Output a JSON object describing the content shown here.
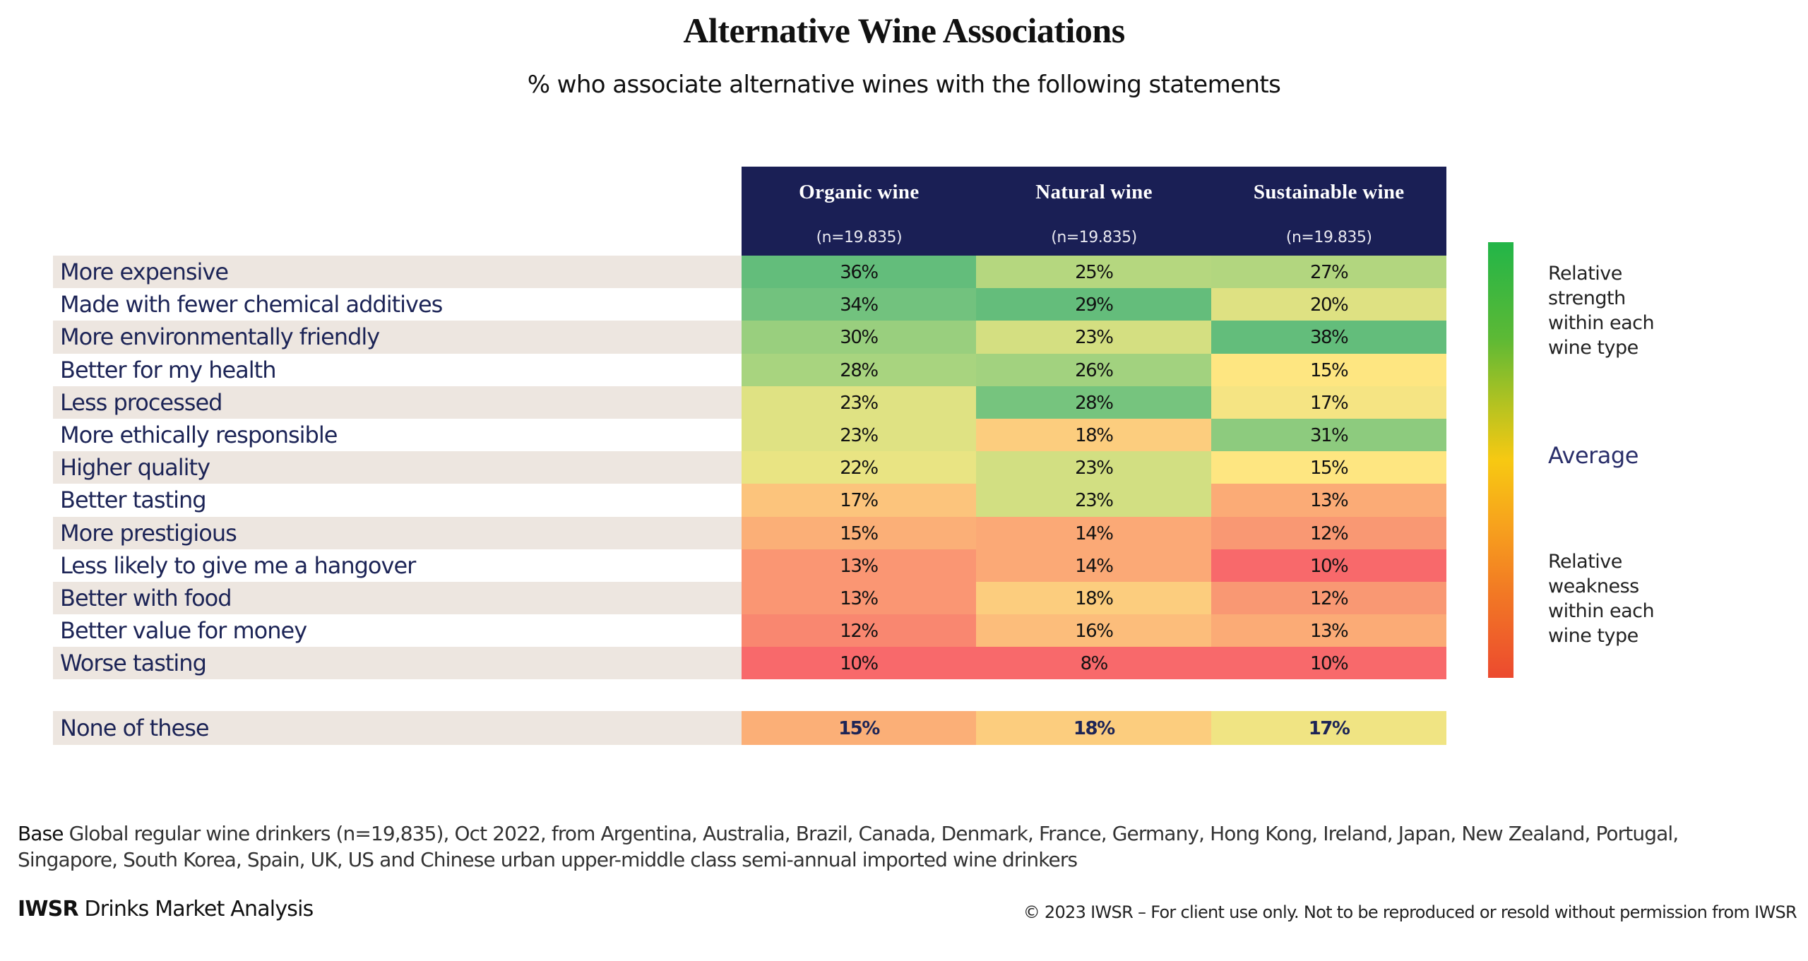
{
  "chart_data": {
    "type": "heatmap",
    "title": "Alternative Wine Associations",
    "subtitle": "% who associate alternative wines with the following statements",
    "columns": [
      {
        "name": "Organic wine",
        "n": "(n=19.835)"
      },
      {
        "name": "Natural wine",
        "n": "(n=19.835)"
      },
      {
        "name": "Sustainable wine",
        "n": "(n=19.835)"
      }
    ],
    "rows": [
      {
        "label": "More expensive",
        "values": [
          36,
          25,
          27
        ],
        "display": [
          "36%",
          "25%",
          "27%"
        ],
        "colors": [
          "#63bd7b",
          "#b5d77f",
          "#b2d67f"
        ]
      },
      {
        "label": "Made with fewer chemical additives",
        "values": [
          34,
          29,
          20
        ],
        "display": [
          "34%",
          "29%",
          "20%"
        ],
        "colors": [
          "#72c27e",
          "#64bd7b",
          "#dee182"
        ]
      },
      {
        "label": "More environmentally friendly",
        "values": [
          30,
          23,
          38
        ],
        "display": [
          "30%",
          "23%",
          "38%"
        ],
        "colors": [
          "#99cf7e",
          "#d4df81",
          "#63bd7b"
        ]
      },
      {
        "label": "Better for my health",
        "values": [
          28,
          26,
          15
        ],
        "display": [
          "28%",
          "26%",
          "15%"
        ],
        "colors": [
          "#a8d47f",
          "#a2d27f",
          "#fee681"
        ]
      },
      {
        "label": "Less processed",
        "values": [
          23,
          28,
          17
        ],
        "display": [
          "23%",
          "28%",
          "17%"
        ],
        "colors": [
          "#dfe283",
          "#76c47e",
          "#f5e483"
        ]
      },
      {
        "label": "More ethically responsible",
        "values": [
          23,
          18,
          31
        ],
        "display": [
          "23%",
          "18%",
          "31%"
        ],
        "colors": [
          "#dfe283",
          "#fccd7e",
          "#8dcb7e"
        ]
      },
      {
        "label": "Higher quality",
        "values": [
          22,
          23,
          15
        ],
        "display": [
          "22%",
          "23%",
          "15%"
        ],
        "colors": [
          "#e9e483",
          "#d2df82",
          "#fee681"
        ]
      },
      {
        "label": "Better tasting",
        "values": [
          17,
          23,
          13
        ],
        "display": [
          "17%",
          "23%",
          "13%"
        ],
        "colors": [
          "#fcc47c",
          "#d2df82",
          "#fbab76"
        ]
      },
      {
        "label": "More prestigious",
        "values": [
          15,
          14,
          12
        ],
        "display": [
          "15%",
          "14%",
          "12%"
        ],
        "colors": [
          "#fbaf77",
          "#fba976",
          "#f99873"
        ]
      },
      {
        "label": "Less likely to give me a hangover",
        "values": [
          13,
          14,
          10
        ],
        "display": [
          "13%",
          "14%",
          "10%"
        ],
        "colors": [
          "#fa9673",
          "#fba976",
          "#f8696b"
        ]
      },
      {
        "label": "Better with food",
        "values": [
          13,
          18,
          12
        ],
        "display": [
          "13%",
          "18%",
          "12%"
        ],
        "colors": [
          "#fa9673",
          "#fccd7e",
          "#f99873"
        ]
      },
      {
        "label": "Better value for money",
        "values": [
          12,
          16,
          13
        ],
        "display": [
          "12%",
          "16%",
          "13%"
        ],
        "colors": [
          "#f98770",
          "#fcbd7b",
          "#fbab76"
        ]
      },
      {
        "label": "Worse tasting",
        "values": [
          10,
          8,
          10
        ],
        "display": [
          "10%",
          "8%",
          "10%"
        ],
        "colors": [
          "#f8696b",
          "#f8696b",
          "#f8696b"
        ]
      }
    ],
    "summary_row": {
      "label": "None of these",
      "values": [
        15,
        18,
        17
      ],
      "display": [
        "15%",
        "18%",
        "17%"
      ],
      "colors": [
        "#fbaf77",
        "#fccd7e",
        "#f0e483"
      ]
    },
    "legend": {
      "strong": [
        "Relative",
        "strength",
        "within each",
        "wine type"
      ],
      "average": "Average",
      "weak": [
        "Relative",
        "weakness",
        "within each",
        "wine type"
      ],
      "scale_colors": [
        "#22b548",
        "#f7c912",
        "#ec4a2f"
      ]
    }
  },
  "header_color": "#1a1f55",
  "footer": {
    "base_key": "Base",
    "base_text": " Global regular wine drinkers (n=19,835), Oct 2022, from Argentina, Australia, Brazil, Canada, Denmark, France, Germany, Hong Kong, Ireland, Japan, New Zealand, Portugal,",
    "base_text_2": "Singapore, South Korea, Spain, UK, US and Chinese urban upper-middle class semi-annual imported wine drinkers",
    "brand_bold": "IWSR",
    "brand_rest": " Drinks Market Analysis",
    "copyright": "© 2023 IWSR – For client use only. Not to be reproduced or resold without permission from IWSR"
  }
}
